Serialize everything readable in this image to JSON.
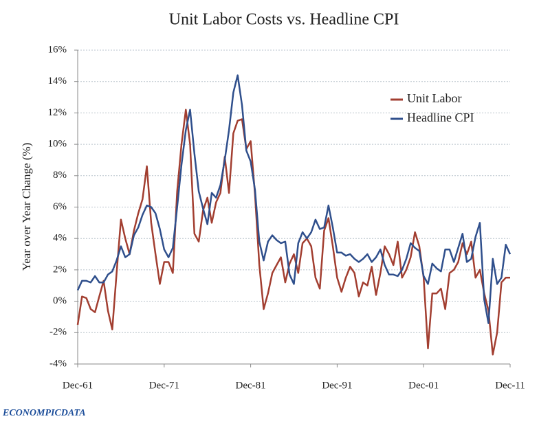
{
  "chart_data": {
    "type": "line",
    "title": "Unit Labor Costs vs. Headline CPI",
    "y_label": "Year over Year Change (%)",
    "source_logo": "ECONOMPICDATA",
    "categories": [
      "Dec-61",
      null,
      null,
      null,
      null,
      null,
      null,
      null,
      null,
      null,
      null,
      null,
      null,
      null,
      null,
      null,
      null,
      null,
      null,
      null,
      "Dec-71",
      null,
      null,
      null,
      null,
      null,
      null,
      null,
      null,
      null,
      null,
      null,
      null,
      null,
      null,
      null,
      null,
      null,
      null,
      null,
      "Dec-81",
      null,
      null,
      null,
      null,
      null,
      null,
      null,
      null,
      null,
      null,
      null,
      null,
      null,
      null,
      null,
      null,
      null,
      null,
      null,
      "Dec-91",
      null,
      null,
      null,
      null,
      null,
      null,
      null,
      null,
      null,
      null,
      null,
      null,
      null,
      null,
      null,
      null,
      null,
      null,
      null,
      "Dec-01",
      null,
      null,
      null,
      null,
      null,
      null,
      null,
      null,
      null,
      null,
      null,
      null,
      null,
      null,
      null,
      null,
      null,
      null,
      null,
      "Dec-11"
    ],
    "series": [
      {
        "name": "Unit Labor",
        "color": "#a23e30",
        "values": [
          -1.5,
          0.3,
          0.2,
          -0.5,
          -0.7,
          0.3,
          1.3,
          -0.6,
          -1.8,
          1.8,
          5.2,
          4.0,
          3.0,
          4.5,
          5.6,
          6.5,
          8.6,
          5.0,
          3.0,
          1.1,
          2.5,
          2.5,
          1.8,
          7.0,
          10.0,
          12.2,
          10.0,
          4.3,
          3.8,
          5.8,
          6.6,
          5.0,
          6.3,
          6.9,
          9.2,
          6.9,
          10.7,
          11.5,
          11.6,
          9.7,
          10.2,
          6.8,
          2.3,
          -0.5,
          0.5,
          1.8,
          2.3,
          2.8,
          1.2,
          2.4,
          3.0,
          1.8,
          3.7,
          4.0,
          3.5,
          1.5,
          0.8,
          4.5,
          5.3,
          3.5,
          1.5,
          0.6,
          1.5,
          2.2,
          1.8,
          0.3,
          1.2,
          1.0,
          2.2,
          0.4,
          1.8,
          3.5,
          3.0,
          2.3,
          3.8,
          1.5,
          2.0,
          2.8,
          4.4,
          3.5,
          1.5,
          -3.0,
          0.5,
          0.5,
          0.8,
          -0.5,
          1.8,
          2.0,
          2.5,
          3.7,
          3.0,
          3.8,
          1.5,
          2.0,
          0.5,
          -0.6,
          -3.4,
          -2.0,
          1.2,
          1.5,
          1.5
        ]
      },
      {
        "name": "Headline CPI",
        "color": "#2f4f8c",
        "values": [
          0.7,
          1.3,
          1.3,
          1.2,
          1.6,
          1.2,
          1.2,
          1.7,
          1.9,
          2.6,
          3.5,
          2.8,
          3.0,
          4.2,
          4.7,
          5.5,
          6.1,
          6.0,
          5.6,
          4.6,
          3.3,
          2.8,
          3.4,
          6.0,
          8.7,
          10.9,
          12.2,
          9.4,
          7.0,
          5.9,
          4.9,
          6.9,
          6.6,
          7.4,
          9.0,
          10.9,
          13.3,
          14.4,
          12.5,
          9.6,
          8.9,
          7.1,
          3.8,
          2.6,
          3.8,
          4.2,
          3.9,
          3.7,
          3.8,
          1.7,
          1.1,
          3.7,
          4.4,
          4.0,
          4.4,
          5.2,
          4.6,
          4.7,
          6.1,
          4.7,
          3.1,
          3.1,
          2.9,
          3.0,
          2.7,
          2.5,
          2.7,
          3.0,
          2.5,
          2.8,
          3.3,
          2.3,
          1.7,
          1.7,
          1.6,
          2.0,
          2.7,
          3.7,
          3.4,
          3.2,
          1.6,
          1.1,
          2.4,
          2.1,
          1.9,
          3.3,
          3.3,
          2.5,
          3.4,
          4.3,
          2.5,
          2.7,
          4.1,
          5.0,
          0.1,
          -1.4,
          2.7,
          1.1,
          1.5,
          3.6,
          3.0
        ]
      }
    ],
    "ylim": [
      -4,
      16
    ],
    "yticks": [
      {
        "value": -4,
        "label": "-4%"
      },
      {
        "value": -2,
        "label": "-2%"
      },
      {
        "value": 0,
        "label": "0%"
      },
      {
        "value": 2,
        "label": "2%"
      },
      {
        "value": 4,
        "label": "4%"
      },
      {
        "value": 6,
        "label": "6%"
      },
      {
        "value": 8,
        "label": "8%"
      },
      {
        "value": 10,
        "label": "10%"
      },
      {
        "value": 12,
        "label": "12%"
      },
      {
        "value": 14,
        "label": "14%"
      },
      {
        "value": 16,
        "label": "16%"
      }
    ],
    "grid": true,
    "legend": "upper right"
  }
}
